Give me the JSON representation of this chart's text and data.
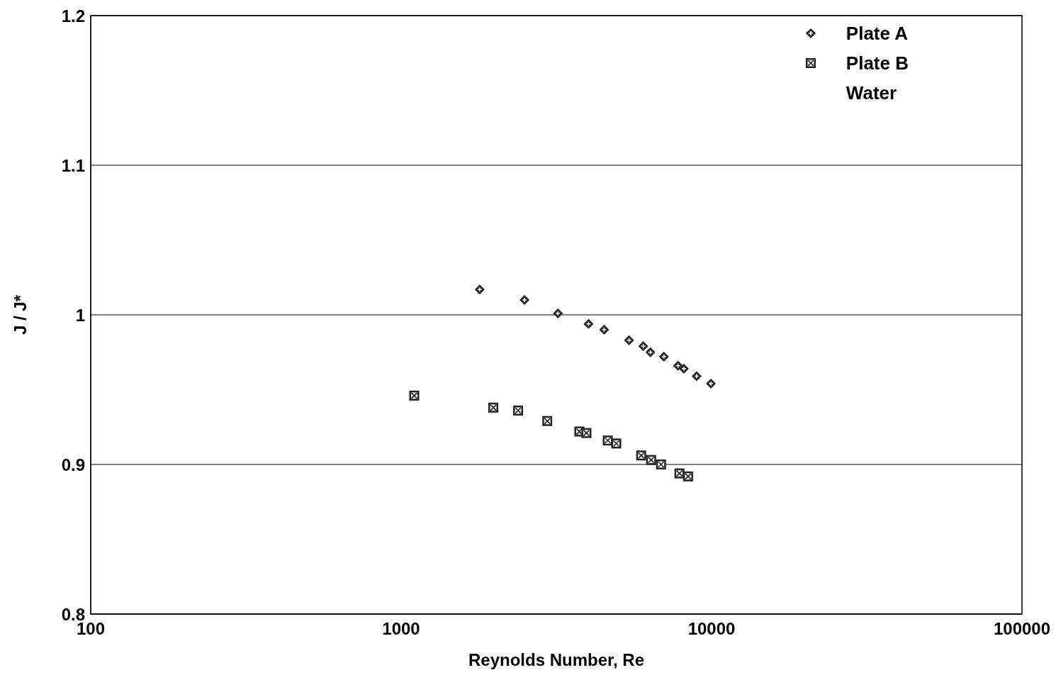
{
  "chart_data": {
    "type": "scatter",
    "xlabel": "Reynolds Number, Re",
    "ylabel": "J / J*",
    "log": "x",
    "xlim": [
      100,
      100000
    ],
    "xticks": [
      100,
      1000,
      10000,
      100000
    ],
    "ylim": [
      0.8,
      1.2
    ],
    "yticks": [
      {
        "value": 0.8,
        "label": "0.8"
      },
      {
        "value": 0.9,
        "label": "0.9"
      },
      {
        "value": 1,
        "label": "1"
      },
      {
        "value": 1.1,
        "label": "1.1"
      },
      {
        "value": 1.2,
        "label": "1.2"
      }
    ],
    "grid": "y",
    "legend": "top right",
    "series": [
      {
        "name": "Plate A",
        "color": "#222222",
        "marker": "diamond",
        "x": [
          1791,
          2497,
          3199,
          4015,
          4508,
          5423,
          6026,
          6353,
          7025,
          7799,
          8143,
          8951,
          9950
        ],
        "values": [
          1.017,
          1.01,
          1.001,
          0.994,
          0.99,
          0.983,
          0.979,
          0.975,
          0.972,
          0.966,
          0.964,
          0.959,
          0.954
        ]
      },
      {
        "name": "Plate B",
        "color": "#222222",
        "marker": "square",
        "x": [
          1102,
          1981,
          2381,
          2956,
          3750,
          3953,
          4630,
          4932,
          5934,
          6386,
          6875,
          7880,
          8402
        ],
        "values": [
          0.946,
          0.938,
          0.936,
          0.929,
          0.922,
          0.921,
          0.916,
          0.914,
          0.906,
          0.903,
          0.9,
          0.894,
          0.892
        ]
      },
      {
        "name": "Water",
        "color": "#222222",
        "marker": "none"
      }
    ]
  }
}
